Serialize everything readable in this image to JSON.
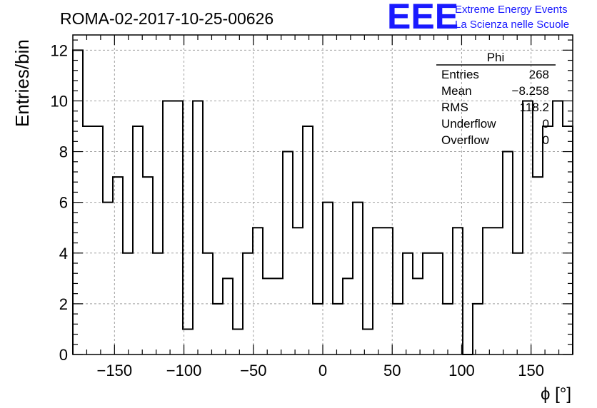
{
  "header": {
    "run_title": "ROMA-02-2017-10-25-00626",
    "logo_text": "EEE",
    "logo_line1": "Extreme Energy Events",
    "logo_line2": "La Scienza nelle Scuole",
    "brand_color": "#1a1aff"
  },
  "stats_box": {
    "title": "Phi",
    "rows": [
      {
        "label": "Entries",
        "value": "268"
      },
      {
        "label": "Mean",
        "value": "−8.258"
      },
      {
        "label": "RMS",
        "value": "118.2"
      },
      {
        "label": "Underflow",
        "value": "0"
      },
      {
        "label": "Overflow",
        "value": "0"
      }
    ]
  },
  "chart_data": {
    "type": "histogram",
    "xlabel": "ϕ [°]",
    "ylabel": "Entries/bin",
    "xlim": [
      -180,
      180
    ],
    "ylim": [
      0,
      12.6
    ],
    "bin_width": 7.2,
    "bin_start": -180,
    "values": [
      12,
      9,
      9,
      6,
      7,
      4,
      9,
      7,
      4,
      10,
      10,
      1,
      10,
      4,
      2,
      3,
      1,
      4,
      5,
      3,
      3,
      8,
      5,
      9,
      2,
      6,
      2,
      3,
      6,
      1,
      5,
      5,
      2,
      4,
      3,
      4,
      4,
      2,
      5,
      0,
      2,
      5,
      5,
      8,
      4,
      10,
      7,
      9,
      10,
      9
    ],
    "x_ticks": [
      -150,
      -100,
      -50,
      0,
      50,
      100,
      150
    ],
    "x_tick_labels": [
      "−150",
      "−100",
      "−50",
      "0",
      "50",
      "100",
      "150"
    ],
    "y_ticks": [
      0,
      2,
      4,
      6,
      8,
      10,
      12
    ],
    "y_tick_labels": [
      "0",
      "2",
      "4",
      "6",
      "8",
      "10",
      "12"
    ],
    "grid": true,
    "line_color": "#000000",
    "grid_color": "#a0a0a0"
  }
}
